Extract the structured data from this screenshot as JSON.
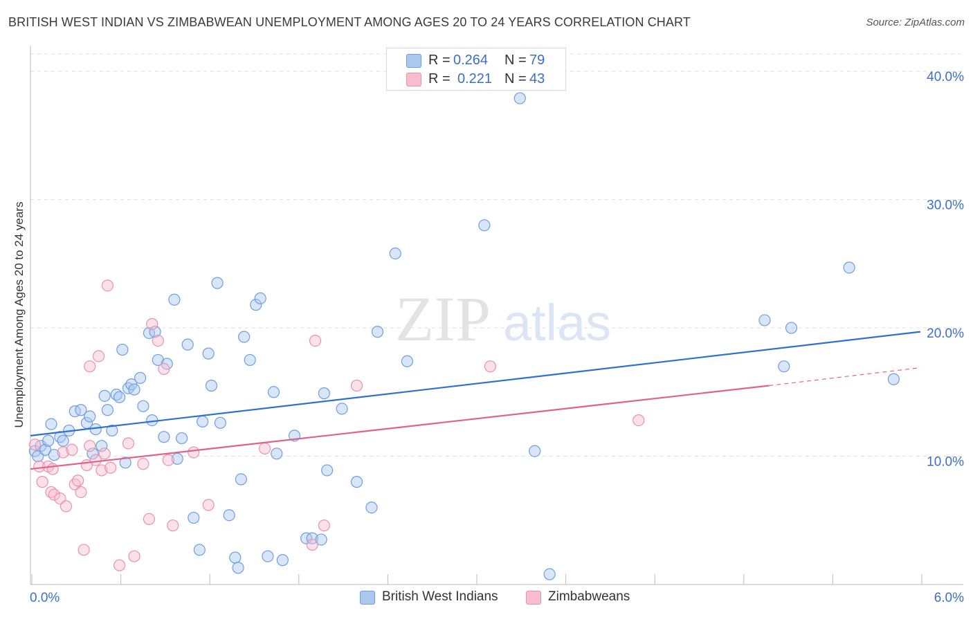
{
  "title": "BRITISH WEST INDIAN VS ZIMBABWEAN UNEMPLOYMENT AMONG AGES 20 TO 24 YEARS CORRELATION CHART",
  "source": "Source: ZipAtlas.com",
  "watermark": {
    "zip": "ZIP",
    "atlas": "atlas"
  },
  "legend": {
    "r_label": "R =",
    "n_label": "N =",
    "series": [
      {
        "name": "British West Indians",
        "r": "0.264",
        "n": "79",
        "fill": "#aac8ee",
        "stroke": "#6d9de0"
      },
      {
        "name": "Zimbabweans",
        "r": "0.221",
        "n": "43",
        "fill": "#f7bcd0",
        "stroke": "#e891ae"
      }
    ]
  },
  "chart_data": {
    "type": "scatter",
    "title": "BRITISH WEST INDIAN VS ZIMBABWEAN UNEMPLOYMENT AMONG AGES 20 TO 24 YEARS CORRELATION CHART",
    "xlabel": "",
    "ylabel": "Unemployment Among Ages 20 to 24 years",
    "xlim": [
      0,
      6
    ],
    "ylim": [
      0,
      42
    ],
    "x_tick_labels": [
      {
        "value": 0,
        "label": "0.0%"
      },
      {
        "value": 6,
        "label": "6.0%"
      }
    ],
    "y_tick_labels": [
      {
        "value": 10,
        "label": "10.0%"
      },
      {
        "value": 20,
        "label": "20.0%"
      },
      {
        "value": 30,
        "label": "30.0%"
      },
      {
        "value": 40,
        "label": "40.0%"
      }
    ],
    "grid": true,
    "legend_position": "top-center",
    "colors": {
      "blue": "#6d9de0",
      "blue_line": "#2f6fd0",
      "pink": "#e891ae",
      "pink_line": "#e0628c",
      "tick_label": "#3b6fc4"
    },
    "series": [
      {
        "name": "British West Indians",
        "color": "#6d9de0",
        "trend": {
          "x0": 0,
          "y0": 11.6,
          "x1": 6,
          "y1": 19.7
        },
        "points": [
          [
            0.03,
            10.4
          ],
          [
            0.05,
            10.0
          ],
          [
            0.07,
            10.8
          ],
          [
            0.1,
            10.5
          ],
          [
            0.12,
            11.2
          ],
          [
            0.14,
            12.5
          ],
          [
            0.16,
            10.1
          ],
          [
            0.2,
            11.5
          ],
          [
            0.22,
            11.2
          ],
          [
            0.26,
            12.0
          ],
          [
            0.3,
            13.5
          ],
          [
            0.34,
            13.6
          ],
          [
            0.38,
            12.6
          ],
          [
            0.4,
            13.1
          ],
          [
            0.42,
            10.2
          ],
          [
            0.44,
            12.1
          ],
          [
            0.48,
            10.8
          ],
          [
            0.5,
            14.7
          ],
          [
            0.52,
            13.6
          ],
          [
            0.55,
            12.0
          ],
          [
            0.58,
            14.8
          ],
          [
            0.62,
            18.3
          ],
          [
            0.64,
            9.5
          ],
          [
            0.66,
            15.3
          ],
          [
            0.68,
            15.6
          ],
          [
            0.7,
            15.2
          ],
          [
            0.74,
            16.1
          ],
          [
            0.76,
            13.9
          ],
          [
            0.8,
            19.6
          ],
          [
            0.82,
            12.8
          ],
          [
            0.84,
            19.7
          ],
          [
            0.86,
            17.5
          ],
          [
            0.9,
            11.5
          ],
          [
            0.92,
            17.2
          ],
          [
            0.97,
            22.2
          ],
          [
            0.99,
            9.8
          ],
          [
            1.02,
            11.4
          ],
          [
            1.06,
            18.7
          ],
          [
            1.1,
            5.2
          ],
          [
            1.14,
            2.7
          ],
          [
            1.16,
            12.7
          ],
          [
            1.2,
            18.0
          ],
          [
            1.22,
            15.5
          ],
          [
            1.26,
            23.5
          ],
          [
            1.28,
            12.6
          ],
          [
            1.34,
            5.4
          ],
          [
            1.38,
            2.1
          ],
          [
            1.4,
            1.3
          ],
          [
            1.42,
            8.2
          ],
          [
            1.44,
            19.3
          ],
          [
            1.48,
            17.5
          ],
          [
            1.52,
            21.8
          ],
          [
            1.55,
            22.3
          ],
          [
            1.6,
            2.2
          ],
          [
            1.64,
            15.0
          ],
          [
            1.66,
            10.2
          ],
          [
            1.7,
            1.9
          ],
          [
            1.78,
            11.6
          ],
          [
            1.86,
            3.6
          ],
          [
            1.9,
            3.6
          ],
          [
            1.98,
            14.9
          ],
          [
            2.0,
            8.9
          ],
          [
            2.1,
            13.7
          ],
          [
            2.2,
            8.0
          ],
          [
            2.3,
            6.0
          ],
          [
            2.34,
            19.7
          ],
          [
            2.46,
            25.8
          ],
          [
            2.54,
            17.4
          ],
          [
            3.06,
            28.0
          ],
          [
            3.3,
            37.9
          ],
          [
            3.4,
            10.4
          ],
          [
            3.5,
            0.8
          ],
          [
            4.95,
            20.6
          ],
          [
            5.08,
            17.0
          ],
          [
            5.13,
            20.0
          ],
          [
            5.52,
            24.7
          ],
          [
            5.82,
            16.0
          ],
          [
            0.6,
            14.6
          ],
          [
            1.96,
            3.5
          ]
        ]
      },
      {
        "name": "Zimbabweans",
        "color": "#e891ae",
        "trend": {
          "x0": 0,
          "y0": 9.0,
          "x1": 4.98,
          "y1": 15.5
        },
        "trend_dashed": {
          "x0": 4.98,
          "y0": 15.5,
          "x1": 6,
          "y1": 16.9
        },
        "points": [
          [
            0.03,
            10.9
          ],
          [
            0.06,
            9.2
          ],
          [
            0.08,
            8.0
          ],
          [
            0.12,
            9.2
          ],
          [
            0.14,
            7.2
          ],
          [
            0.16,
            7.0
          ],
          [
            0.2,
            6.7
          ],
          [
            0.22,
            10.3
          ],
          [
            0.24,
            6.1
          ],
          [
            0.28,
            10.5
          ],
          [
            0.3,
            7.8
          ],
          [
            0.32,
            8.1
          ],
          [
            0.34,
            7.2
          ],
          [
            0.36,
            2.7
          ],
          [
            0.38,
            9.3
          ],
          [
            0.4,
            10.8
          ],
          [
            0.4,
            17.0
          ],
          [
            0.44,
            9.7
          ],
          [
            0.46,
            17.8
          ],
          [
            0.48,
            8.9
          ],
          [
            0.5,
            10.2
          ],
          [
            0.52,
            23.3
          ],
          [
            0.54,
            9.1
          ],
          [
            0.6,
            1.5
          ],
          [
            0.66,
            11.0
          ],
          [
            0.7,
            2.2
          ],
          [
            0.76,
            9.4
          ],
          [
            0.8,
            5.1
          ],
          [
            0.82,
            20.3
          ],
          [
            0.86,
            19.0
          ],
          [
            0.9,
            16.8
          ],
          [
            0.93,
            9.7
          ],
          [
            0.96,
            4.6
          ],
          [
            1.1,
            10.3
          ],
          [
            1.2,
            6.2
          ],
          [
            1.58,
            10.6
          ],
          [
            1.9,
            3.1
          ],
          [
            1.92,
            19.0
          ],
          [
            1.98,
            4.6
          ],
          [
            2.2,
            15.5
          ],
          [
            3.1,
            17.0
          ],
          [
            4.1,
            12.8
          ],
          [
            0.15,
            9.0
          ]
        ]
      }
    ]
  }
}
